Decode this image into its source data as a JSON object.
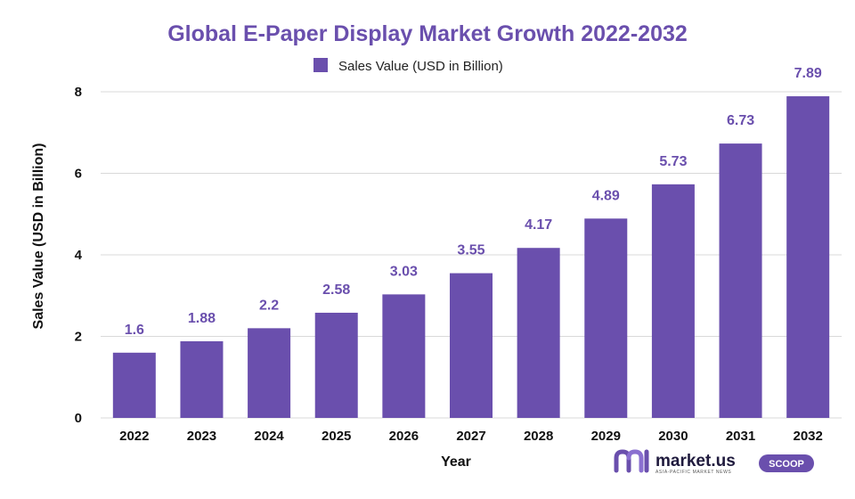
{
  "chart_data": {
    "type": "bar",
    "title": "Global E-Paper Display Market Growth 2022-2032",
    "xlabel": "Year",
    "ylabel": "Sales Value (USD in Billion)",
    "categories": [
      "2022",
      "2023",
      "2024",
      "2025",
      "2026",
      "2027",
      "2028",
      "2029",
      "2030",
      "2031",
      "2032"
    ],
    "series": [
      {
        "name": "Sales Value (USD in Billion)",
        "values": [
          1.6,
          1.88,
          2.2,
          2.58,
          3.03,
          3.55,
          4.17,
          4.89,
          5.73,
          6.73,
          7.89
        ],
        "color": "#6a4fad"
      }
    ],
    "ylim": [
      0,
      8
    ],
    "yticks": [
      "0",
      "2",
      "4",
      "6",
      "8"
    ],
    "data_labels": [
      "1.6",
      "1.88",
      "2.2",
      "2.58",
      "3.03",
      "3.55",
      "4.17",
      "4.89",
      "5.73",
      "6.73",
      "7.89"
    ],
    "grid": true,
    "legend_position": "top-center"
  },
  "colors": {
    "title": "#6a4fad",
    "bar": "#6a4fad",
    "data_label": "#6a4fad",
    "grid": "#d9d9d9"
  },
  "branding": {
    "name": "market.us",
    "tagline": "ASIA-PACIFIC MARKET NEWS",
    "badge": "SCOOP",
    "logo_icon": "market-us-logo-icon"
  }
}
